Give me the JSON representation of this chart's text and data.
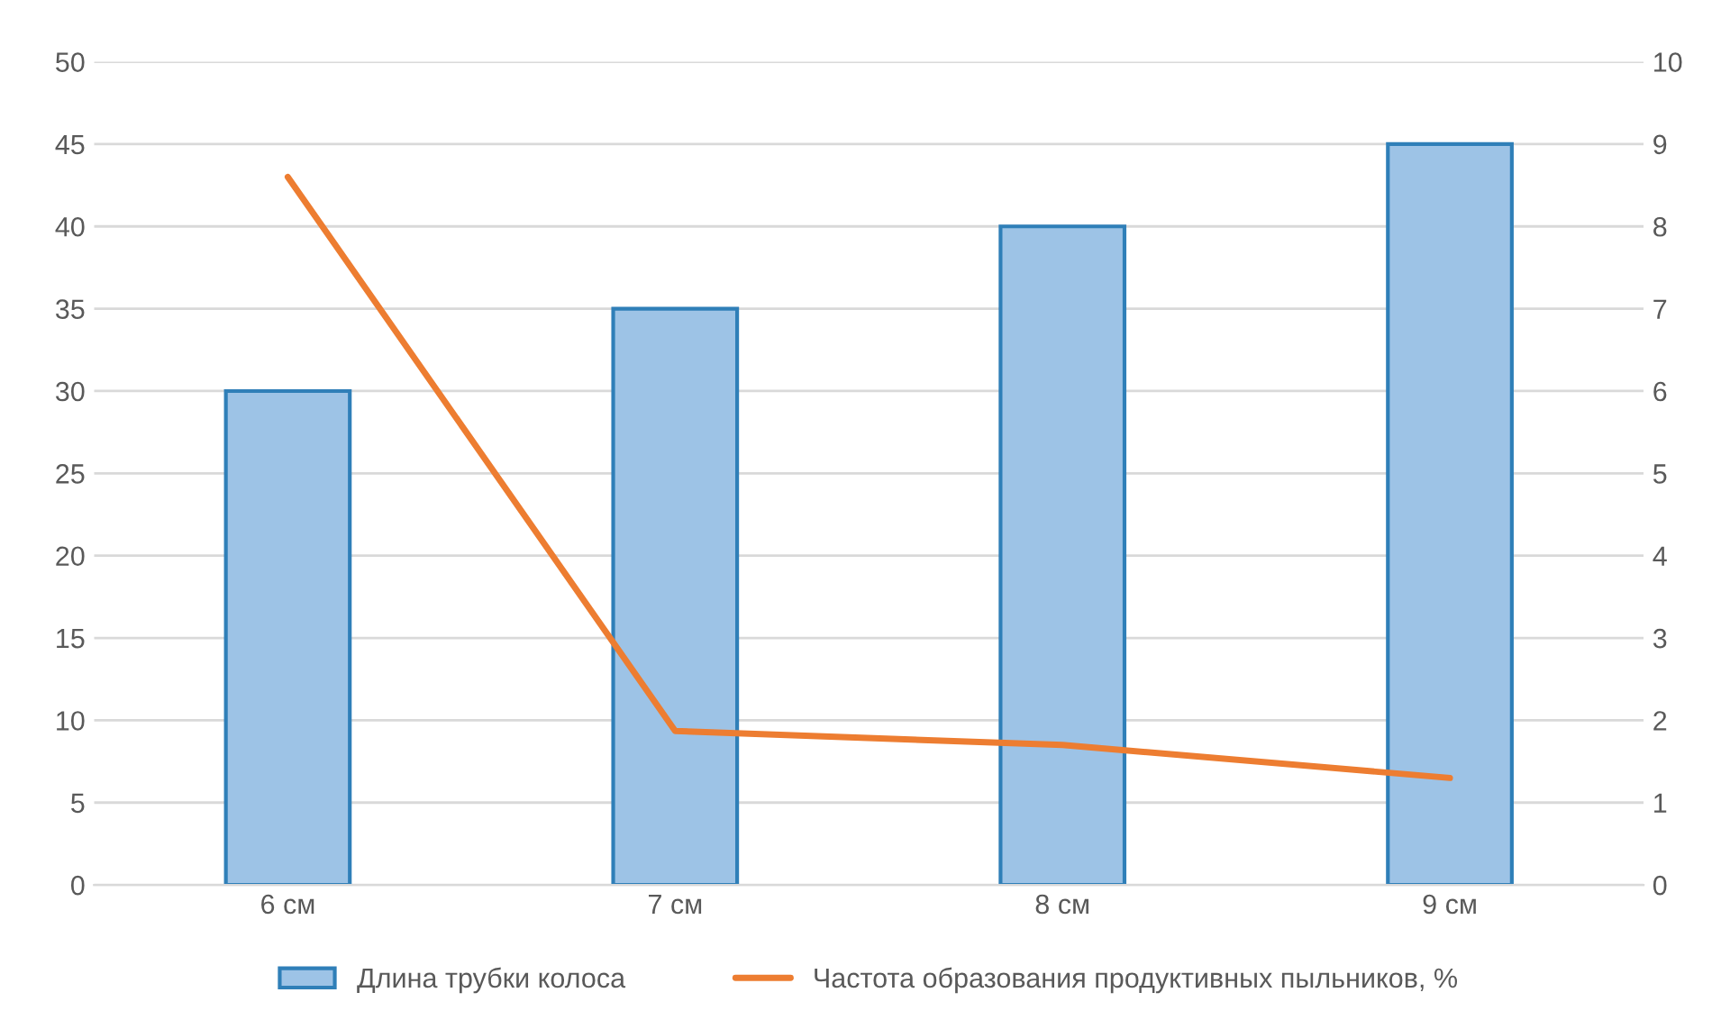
{
  "chart_data": {
    "type": "bar",
    "categories": [
      "6 см",
      "7 см",
      "8 см",
      "9 см"
    ],
    "series": [
      {
        "name": "Длина трубки колоса",
        "color": "#9dc3e6",
        "values": [
          30,
          35,
          40,
          45
        ]
      },
      {
        "name": "Частота образования продуктивных пыльников, %",
        "type": "line",
        "axis": "y2",
        "color": "#ed7d31",
        "values": [
          8.6,
          1.87,
          1.7,
          1.3
        ]
      }
    ],
    "ylim": [
      0,
      50
    ],
    "yticks": [
      0,
      5,
      10,
      15,
      20,
      25,
      30,
      35,
      40,
      45,
      50
    ],
    "y2lim": [
      0,
      10
    ],
    "y2ticks": [
      0,
      1,
      2,
      3,
      4,
      5,
      6,
      7,
      8,
      9,
      10
    ],
    "grid": "y",
    "legend": "bottom",
    "marker": "none"
  }
}
